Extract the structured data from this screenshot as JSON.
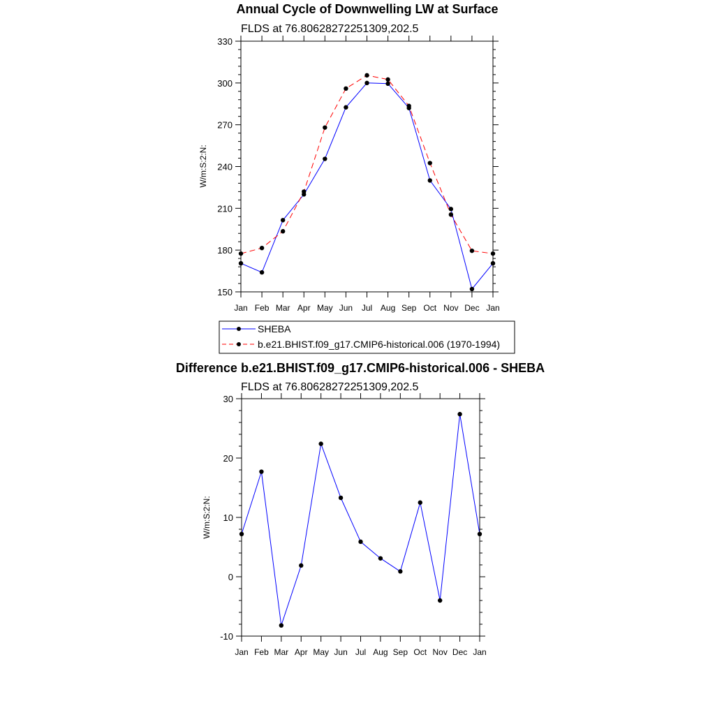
{
  "chart_data": [
    {
      "type": "line",
      "title": "Annual Cycle of Downwelling LW at Surface",
      "subtitle": "FLDS at 76.80628272251309,202.5",
      "ylabel": "W/m:S:2:N:",
      "xlabel": "",
      "ylim": [
        150,
        330
      ],
      "yticks": [
        "150",
        "180",
        "210",
        "240",
        "270",
        "300",
        "330"
      ],
      "categories": [
        "Jan",
        "Feb",
        "Mar",
        "Apr",
        "May",
        "Jun",
        "Jul",
        "Aug",
        "Sep",
        "Oct",
        "Nov",
        "Dec",
        "Jan"
      ],
      "series": [
        {
          "name": "SHEBA",
          "color": "#0000ff",
          "dash": "solid",
          "values": [
            170.5,
            164,
            201.5,
            220,
            245.5,
            282.5,
            300,
            299.5,
            282,
            230,
            209.5,
            152,
            170.5
          ]
        },
        {
          "name": "b.e21.BHIST.f09_g17.CMIP6-historical.006 (1970-1994)",
          "color": "#ff0000",
          "dash": "dashed",
          "values": [
            177.5,
            181.5,
            193.5,
            222,
            268,
            296,
            305.5,
            302.5,
            283.5,
            242.5,
            205.5,
            179.5,
            177.5
          ]
        }
      ],
      "legend": "bottom",
      "grid": false
    },
    {
      "type": "line",
      "title": "Difference b.e21.BHIST.f09_g17.CMIP6-historical.006 - SHEBA",
      "subtitle": "FLDS at 76.80628272251309,202.5",
      "ylabel": "W/m:S:2:N:",
      "xlabel": "",
      "ylim": [
        -10,
        30
      ],
      "yticks": [
        "-10",
        "0",
        "10",
        "20",
        "30"
      ],
      "categories": [
        "Jan",
        "Feb",
        "Mar",
        "Apr",
        "May",
        "Jun",
        "Jul",
        "Aug",
        "Sep",
        "Oct",
        "Nov",
        "Dec",
        "Jan"
      ],
      "series": [
        {
          "color": "#0000ff",
          "dash": "solid",
          "values": [
            7.2,
            17.7,
            -8.2,
            1.9,
            22.4,
            13.3,
            5.9,
            3.1,
            0.9,
            12.5,
            -4,
            27.4,
            7.2
          ]
        }
      ],
      "grid": false
    }
  ]
}
